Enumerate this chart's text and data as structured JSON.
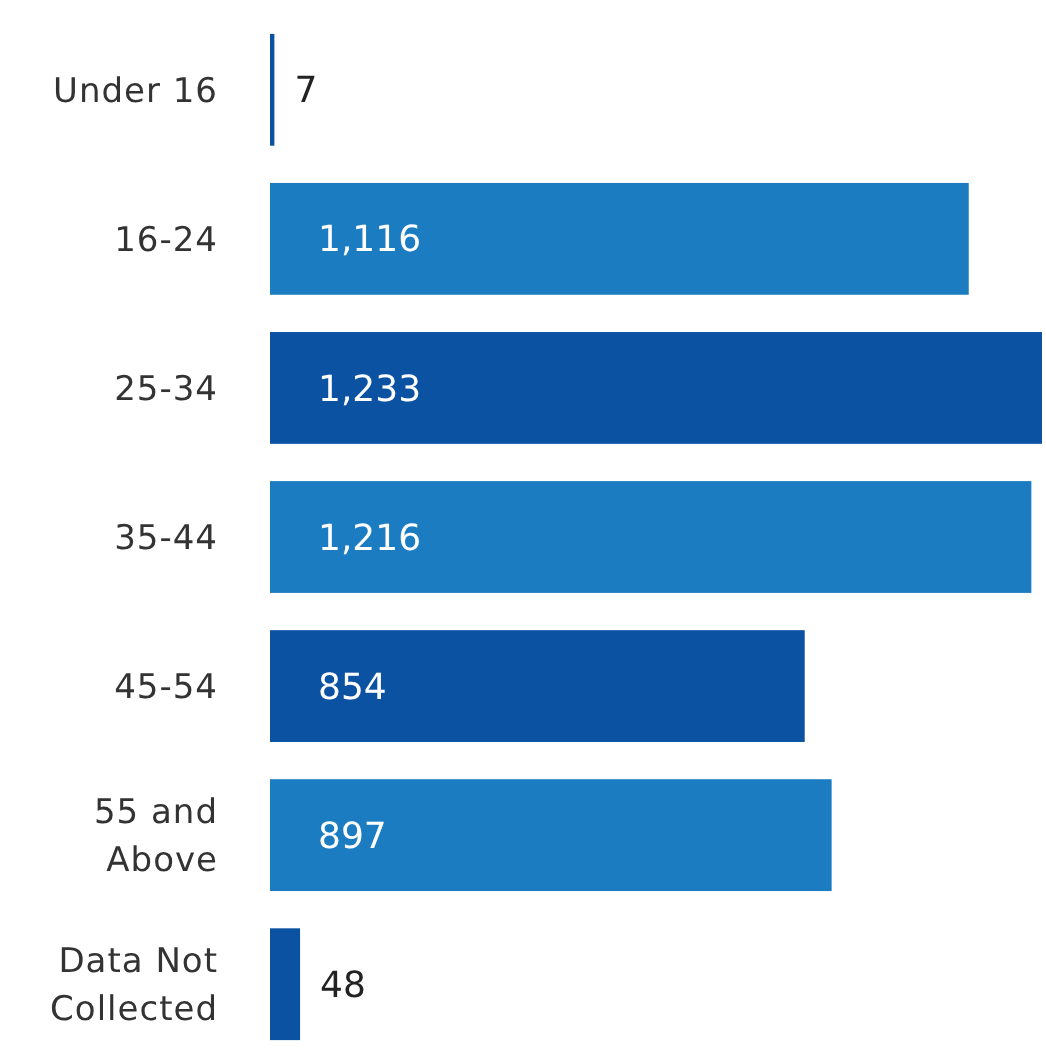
{
  "chart_data": {
    "type": "bar",
    "orientation": "horizontal",
    "categories": [
      "Under 16",
      "16-24",
      "25-34",
      "35-44",
      "45-54",
      "55 and Above",
      "Data Not Collected"
    ],
    "values": [
      7,
      1116,
      1233,
      1216,
      854,
      897,
      48
    ],
    "colors": [
      "#0b52a3",
      "#1b7cc2",
      "#0b52a3",
      "#1b7cc2",
      "#0b52a3",
      "#1b7cc2",
      "#0b52a3"
    ],
    "value_labels": [
      "7",
      "1,116",
      "1,233",
      "1,216",
      "854",
      "897",
      "48"
    ]
  }
}
